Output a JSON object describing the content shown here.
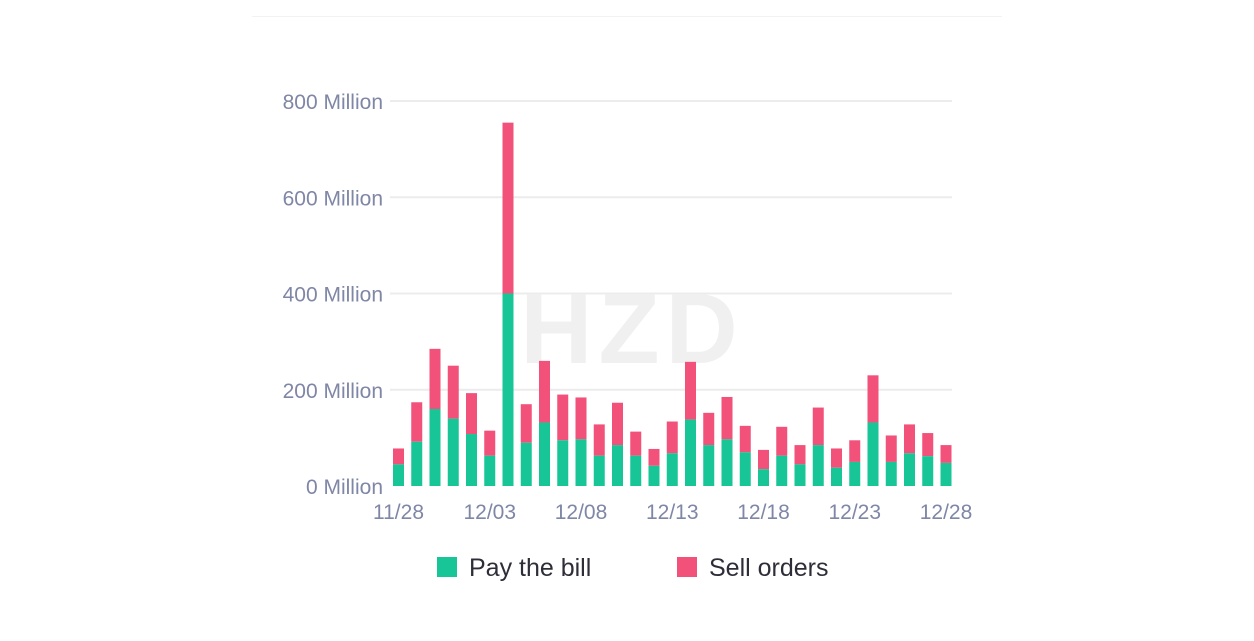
{
  "chart_data": {
    "type": "bar",
    "stacked": true,
    "title": "",
    "xlabel": "",
    "ylabel": "",
    "ylim": [
      0,
      800
    ],
    "y_unit": "Million",
    "y_ticks": [
      "0 Million",
      "200 Million",
      "400 Million",
      "600 Million",
      "800 Million"
    ],
    "y_tick_values": [
      0,
      200,
      400,
      600,
      800
    ],
    "x_ticks": [
      "11/28",
      "12/03",
      "12/08",
      "12/13",
      "12/18",
      "12/23",
      "12/28"
    ],
    "grid": "horizontal",
    "legend_position": "bottom",
    "categories": [
      "11/28",
      "11/29",
      "11/30",
      "12/01",
      "12/02",
      "12/03",
      "12/04",
      "12/05",
      "12/06",
      "12/07",
      "12/08",
      "12/09",
      "12/10",
      "12/11",
      "12/12",
      "12/13",
      "12/14",
      "12/15",
      "12/16",
      "12/17",
      "12/18",
      "12/19",
      "12/20",
      "12/21",
      "12/22",
      "12/23",
      "12/24",
      "12/25",
      "12/26",
      "12/27",
      "12/28"
    ],
    "series": [
      {
        "name": "Pay the bill",
        "color": "#17c597",
        "values": [
          45,
          92,
          160,
          140,
          108,
          63,
          400,
          90,
          132,
          95,
          97,
          63,
          85,
          63,
          42,
          68,
          138,
          85,
          97,
          70,
          35,
          63,
          45,
          85,
          38,
          50,
          132,
          50,
          68,
          62,
          48
        ]
      },
      {
        "name": "Sell orders",
        "color": "#f2527a",
        "values": [
          33,
          82,
          125,
          110,
          85,
          52,
          355,
          80,
          128,
          95,
          87,
          65,
          88,
          50,
          35,
          66,
          120,
          67,
          88,
          55,
          40,
          60,
          40,
          78,
          40,
          45,
          98,
          55,
          60,
          48,
          37
        ]
      }
    ]
  },
  "watermark": "HZD"
}
